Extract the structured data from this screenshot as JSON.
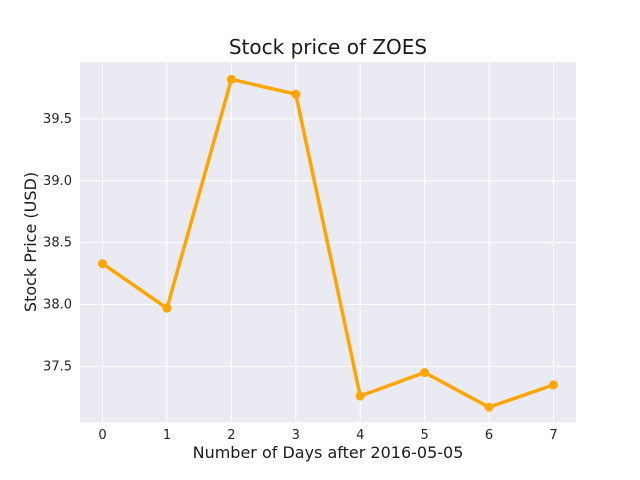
{
  "chart_data": {
    "type": "line",
    "title": "Stock price of ZOES",
    "xlabel": "Number of Days after 2016-05-05",
    "ylabel": "Stock Price (USD)",
    "x": [
      0,
      1,
      2,
      3,
      4,
      5,
      6,
      7
    ],
    "xticks": [
      "0",
      "1",
      "2",
      "3",
      "4",
      "5",
      "6",
      "7"
    ],
    "yticks": [
      "37.5",
      "38.0",
      "38.5",
      "39.0",
      "39.5"
    ],
    "ytick_values": [
      37.5,
      38.0,
      38.5,
      39.0,
      39.5
    ],
    "series": [
      {
        "values": [
          38.33,
          37.97,
          39.82,
          39.7,
          37.26,
          37.45,
          37.17,
          37.35
        ],
        "color": "#FFA500"
      }
    ],
    "xlim": [
      -0.35,
      7.35
    ],
    "ylim": [
      37.05,
      39.96
    ],
    "grid": true,
    "colors": {
      "plot_background": "#EAEAF2",
      "grid": "#FFFFFF",
      "line": "#FFA500"
    }
  }
}
